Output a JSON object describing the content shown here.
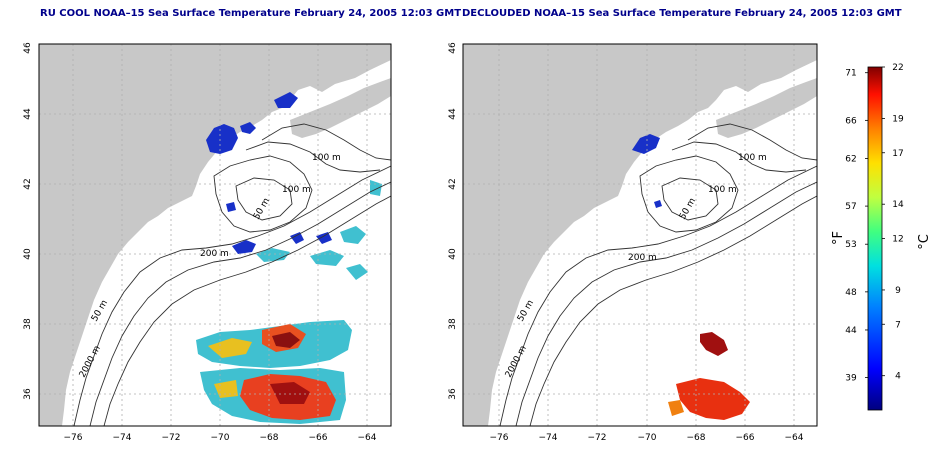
{
  "panels": {
    "left": {
      "title": "RU COOL NOAA–15 Sea Surface Temperature February 24, 2005 12:03 GMT",
      "contour_labels": [
        "100 m",
        "100 m",
        "50 m",
        "200 m",
        "50 m",
        "2000 m"
      ]
    },
    "right": {
      "title": "DECLOUDED NOAA–15 Sea Surface Temperature February 24, 2005 12:03 GMT",
      "contour_labels": [
        "100 m",
        "100 m",
        "50 m",
        "200 m",
        "50 m",
        "2000 m"
      ]
    }
  },
  "axes": {
    "lon_ticks": [
      "−76",
      "−74",
      "−72",
      "−70",
      "−68",
      "−66",
      "−64"
    ],
    "lat_ticks": [
      "36",
      "38",
      "40",
      "42",
      "44",
      "46"
    ],
    "lon_range": [
      -77,
      -63
    ],
    "lat_range": [
      35,
      46
    ]
  },
  "colorbar": {
    "fahrenheit_label": "°F",
    "celsius_label": "°C",
    "fahrenheit_ticks": [
      "71",
      "66",
      "62",
      "57",
      "53",
      "48",
      "44",
      "39"
    ],
    "celsius_ticks": [
      "22",
      "19",
      "17",
      "14",
      "12",
      "9",
      "7",
      "4"
    ],
    "celsius_range": [
      2,
      22
    ],
    "fahrenheit_values": [
      71,
      66,
      62,
      57,
      53,
      48,
      44,
      39
    ],
    "celsius_values": [
      22,
      19,
      17,
      14,
      12,
      9,
      7,
      4
    ]
  },
  "colors": {
    "title": "#00008b",
    "land": "#c8c8c8",
    "ocean": "#ffffff",
    "grid": "#b0b0b0",
    "contour": "#333333",
    "cold": "#1020c0",
    "cyan": "#40c0d0",
    "warm": "#e03010",
    "hot": "#a00000"
  }
}
